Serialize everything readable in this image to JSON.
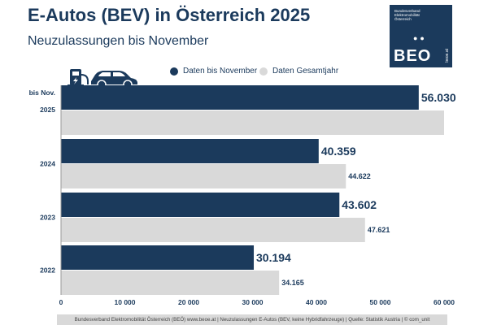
{
  "header": {
    "title": "E-Autos (BEV) in Österreich 2025",
    "subtitle": "Neuzulassungen bis November"
  },
  "logo": {
    "lines": [
      "Bundesverband",
      "Elektromobilität",
      "Österreich"
    ],
    "text": "BEO",
    "url": "beoe.at"
  },
  "legend": [
    {
      "label": "Daten bis November",
      "color": "#1b3a5c"
    },
    {
      "label": "Daten Gesamtjahr",
      "color": "#d9d9d9"
    }
  ],
  "chart_data": {
    "type": "bar",
    "orientation": "horizontal",
    "title": "E-Autos (BEV) in Österreich 2025",
    "subtitle": "Neuzulassungen bis November",
    "categories": [
      {
        "label_lines": [
          "bis Nov.",
          "2025"
        ]
      },
      {
        "label_lines": [
          "2024"
        ]
      },
      {
        "label_lines": [
          "2023"
        ]
      },
      {
        "label_lines": [
          "2022"
        ]
      }
    ],
    "series": [
      {
        "name": "Daten bis November",
        "color": "#1b3a5c",
        "values": [
          56030,
          40359,
          43602,
          30194
        ],
        "labels": [
          "56.030",
          "40.359",
          "43.602",
          "30.194"
        ]
      },
      {
        "name": "Daten Gesamtjahr",
        "color": "#d9d9d9",
        "values": [
          60000,
          44622,
          47621,
          34165
        ],
        "labels": [
          "",
          "44.622",
          "47.621",
          "34.165"
        ]
      }
    ],
    "xlim": [
      0,
      60000
    ],
    "xticks": [
      0,
      10000,
      20000,
      30000,
      40000,
      50000,
      60000
    ],
    "xtick_labels": [
      "0",
      "10 000",
      "20 000",
      "30 000",
      "40 000",
      "50 000",
      "60 000"
    ],
    "legend_position": "top",
    "grid": false
  },
  "footer": {
    "text": "Bundesverband Elektromobilität Österreich (BEÖ) www.beoe.at | Neuzulassungen E-Autos (BEV, keine Hybridfahrzeuge) | Quelle: Statistik Austria | © com_unit"
  }
}
